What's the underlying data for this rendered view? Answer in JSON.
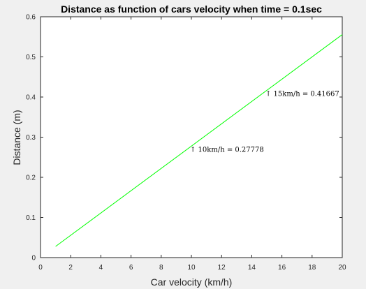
{
  "chart_data": {
    "type": "line",
    "title": "Distance as function of cars velocity when time = 0.1sec",
    "xlabel": "Car velocity (km/h)",
    "ylabel": "Distance (m)",
    "xlim": [
      0,
      20
    ],
    "ylim": [
      0,
      0.6
    ],
    "xticks": [
      0,
      2,
      4,
      6,
      8,
      10,
      12,
      14,
      16,
      18,
      20
    ],
    "yticks": [
      0,
      0.1,
      0.2,
      0.3,
      0.4,
      0.5,
      0.6
    ],
    "grid": false,
    "series": [
      {
        "color": "#00ff00",
        "x": [
          1,
          20
        ],
        "y": [
          0.02778,
          0.55556
        ]
      }
    ],
    "annotations": [
      {
        "text": "↑ 10km/h = 0.27778",
        "x": 10,
        "y": 0.27778
      },
      {
        "text": "↑ 15km/h = 0.41667",
        "x": 15,
        "y": 0.41667
      }
    ]
  }
}
